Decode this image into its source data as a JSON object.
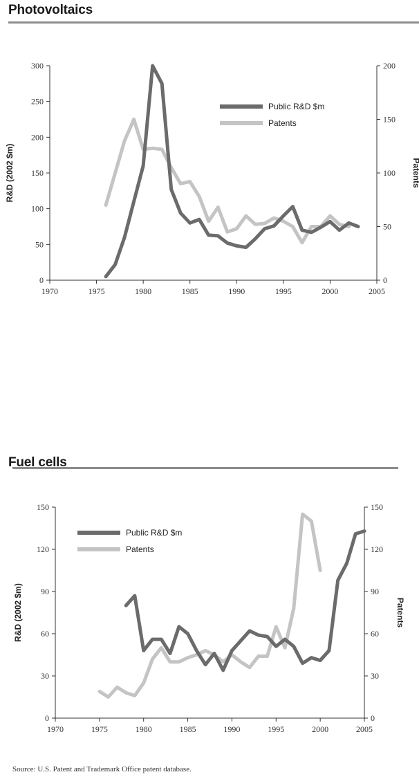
{
  "colors": {
    "rd": "#6b6b6b",
    "patents": "#c4c4c4",
    "axis": "#333333",
    "rule": "#8c8c8c"
  },
  "source": "Source: U.S. Patent and Trademark Office patent database.",
  "chart_data": [
    {
      "type": "line",
      "title": "Photovoltaics",
      "ylabel": "R&D (2002 $m)",
      "y2label": "Patents",
      "xlim": [
        1970,
        2005
      ],
      "xticks": [
        1970,
        1975,
        1980,
        1985,
        1990,
        1995,
        2000,
        2005
      ],
      "ylim": [
        0,
        300
      ],
      "yticks": [
        0,
        50,
        100,
        150,
        200,
        250,
        300
      ],
      "y2lim": [
        0,
        200
      ],
      "y2ticks": [
        0,
        50,
        100,
        150,
        200
      ],
      "grid": false,
      "legend": "upper-right",
      "series": [
        {
          "name": "Public R&D $m",
          "axis": "left",
          "color": "#6b6b6b",
          "x": [
            1976,
            1977,
            1978,
            1979,
            1980,
            1981,
            1982,
            1983,
            1984,
            1985,
            1986,
            1987,
            1988,
            1989,
            1990,
            1991,
            1992,
            1993,
            1994,
            1995,
            1996,
            1997,
            1998,
            1999,
            2000,
            2001,
            2002,
            2003
          ],
          "values": [
            5,
            22,
            60,
            110,
            160,
            300,
            275,
            127,
            94,
            80,
            85,
            63,
            62,
            52,
            48,
            46,
            58,
            72,
            76,
            90,
            103,
            70,
            67,
            74,
            82,
            70,
            80,
            75
          ]
        },
        {
          "name": "Patents",
          "axis": "right",
          "color": "#c4c4c4",
          "x": [
            1976,
            1977,
            1978,
            1979,
            1980,
            1981,
            1982,
            1983,
            1984,
            1985,
            1986,
            1987,
            1988,
            1989,
            1990,
            1991,
            1992,
            1993,
            1994,
            1995,
            1996,
            1997,
            1998,
            1999,
            2000,
            2001,
            2002
          ],
          "values": [
            70,
            100,
            130,
            150,
            122,
            123,
            122,
            105,
            90,
            92,
            78,
            55,
            68,
            45,
            48,
            60,
            52,
            53,
            58,
            55,
            50,
            35,
            50,
            50,
            60,
            52,
            50
          ]
        }
      ]
    },
    {
      "type": "line",
      "title": "Fuel cells",
      "ylabel": "R&D (2002 $m)",
      "y2label": "Patents",
      "xlim": [
        1970,
        2005
      ],
      "xticks": [
        1970,
        1975,
        1980,
        1985,
        1990,
        1995,
        2000,
        2005
      ],
      "ylim": [
        0,
        150
      ],
      "yticks": [
        0,
        30,
        60,
        90,
        120,
        150
      ],
      "y2lim": [
        0,
        150
      ],
      "y2ticks": [
        0,
        30,
        60,
        90,
        120,
        150
      ],
      "grid": false,
      "legend": "upper-left",
      "series": [
        {
          "name": "Public R&D $m",
          "axis": "left",
          "color": "#6b6b6b",
          "x": [
            1978,
            1979,
            1980,
            1981,
            1982,
            1983,
            1984,
            1985,
            1986,
            1987,
            1988,
            1989,
            1990,
            1991,
            1992,
            1993,
            1994,
            1995,
            1996,
            1997,
            1998,
            1999,
            2000,
            2001,
            2002,
            2003,
            2004,
            2005
          ],
          "values": [
            80,
            87,
            48,
            56,
            56,
            46,
            65,
            60,
            48,
            38,
            46,
            34,
            48,
            55,
            62,
            59,
            58,
            51,
            56,
            51,
            39,
            43,
            41,
            48,
            98,
            110,
            131,
            133
          ]
        },
        {
          "name": "Patents",
          "axis": "right",
          "color": "#c4c4c4",
          "x": [
            1975,
            1976,
            1977,
            1978,
            1979,
            1980,
            1981,
            1982,
            1983,
            1984,
            1985,
            1986,
            1987,
            1988,
            1989,
            1990,
            1991,
            1992,
            1993,
            1994,
            1995,
            1996,
            1997,
            1998,
            1999,
            2000
          ],
          "values": [
            19,
            15,
            22,
            18,
            16,
            25,
            42,
            50,
            40,
            40,
            43,
            45,
            48,
            45,
            40,
            45,
            40,
            36,
            44,
            44,
            65,
            50,
            78,
            145,
            140,
            105
          ]
        }
      ]
    }
  ]
}
